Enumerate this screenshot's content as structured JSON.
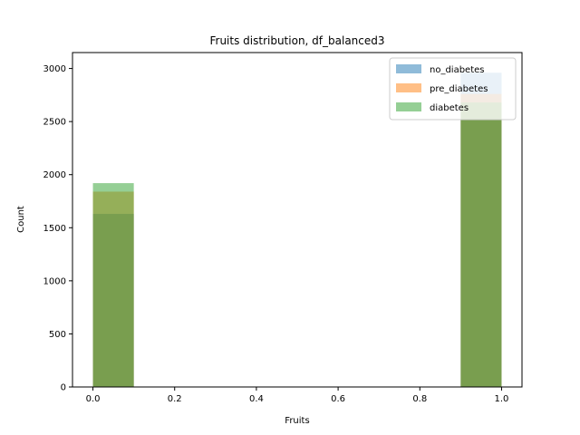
{
  "chart_data": {
    "type": "bar",
    "title": "Fruits distribution, df_balanced3",
    "xlabel": "Fruits",
    "ylabel": "Count",
    "xlim": [
      -0.05,
      1.05
    ],
    "ylim": [
      0,
      3150
    ],
    "xticks": [
      "0.0",
      "0.2",
      "0.4",
      "0.6",
      "0.8",
      "1.0"
    ],
    "yticks": [
      "0",
      "500",
      "1000",
      "1500",
      "2000",
      "2500",
      "3000"
    ],
    "bins": [
      [
        0.0,
        0.1
      ],
      [
        0.9,
        1.0
      ]
    ],
    "legend_position": "top-right",
    "grid": false,
    "series": [
      {
        "name": "no_diabetes",
        "color": "#1f77b4",
        "values": [
          1630,
          2960
        ]
      },
      {
        "name": "pre_diabetes",
        "color": "#ff7f0e",
        "values": [
          1840,
          2760
        ]
      },
      {
        "name": "diabetes",
        "color": "#2ca02c",
        "values": [
          1920,
          2680
        ]
      }
    ],
    "alpha": 0.5
  }
}
